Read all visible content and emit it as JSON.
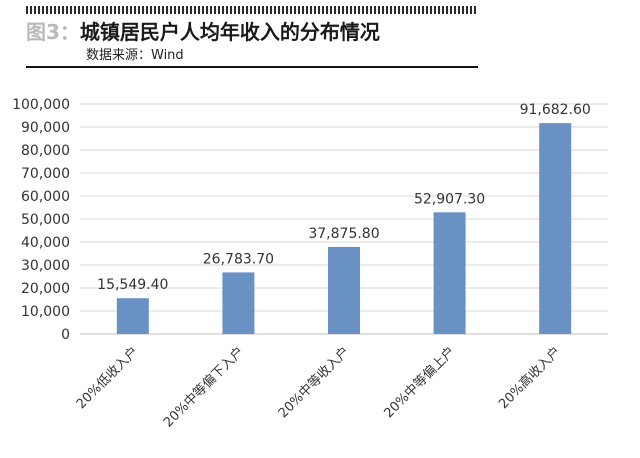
{
  "figure": {
    "label": "图3：",
    "title": "城镇居民户人均年收入的分布情况",
    "source": "数据来源：Wind"
  },
  "colors": {
    "bar": "#6a91c4",
    "grid": "#d9d9d9",
    "axis": "#bfbfbf",
    "text": "#333333"
  },
  "chart_data": {
    "type": "bar",
    "categories": [
      "20%低收入户",
      "20%中等偏下入户",
      "20%中等收入户",
      "20%中等偏上户",
      "20%高收入户"
    ],
    "values": [
      15549.4,
      26783.7,
      37875.8,
      52907.3,
      91682.6
    ],
    "value_labels": [
      "15,549.40",
      "26,783.70",
      "37,875.80",
      "52,907.30",
      "91,682.60"
    ],
    "ylim": [
      0,
      100000
    ],
    "yticks": [
      0,
      10000,
      20000,
      30000,
      40000,
      50000,
      60000,
      70000,
      80000,
      90000,
      100000
    ],
    "ytick_labels": [
      "0",
      "10,000",
      "20,000",
      "30,000",
      "40,000",
      "50,000",
      "60,000",
      "70,000",
      "80,000",
      "90,000",
      "100,000"
    ],
    "grid": true,
    "legend": "none"
  }
}
